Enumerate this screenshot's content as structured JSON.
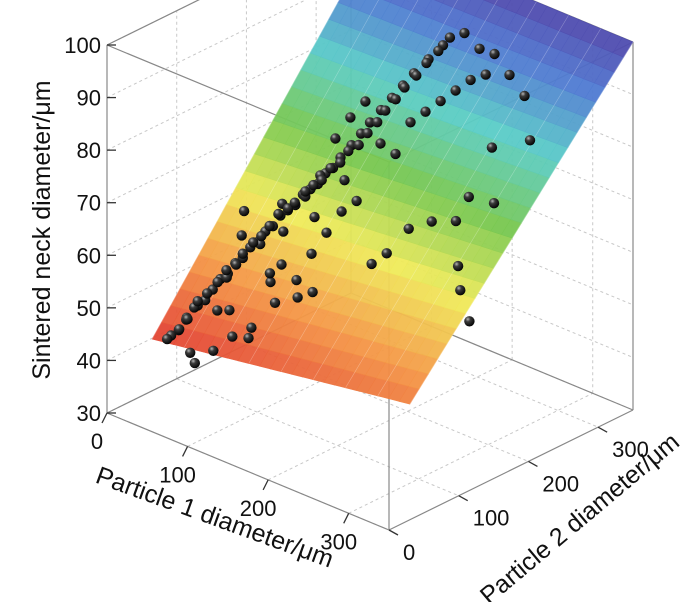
{
  "chart_data": {
    "type": "scatter",
    "subtype": "3d-scatter-with-fitted-surface",
    "title": "",
    "xlabel": "Particle 1 diameter/μm",
    "ylabel": "Particle 2 diameter/μm",
    "zlabel": "Sintered neck diameter/μm",
    "xlim": [
      0,
      350
    ],
    "ylim": [
      0,
      350
    ],
    "zlim": [
      30,
      100
    ],
    "x_ticks": [
      "0",
      "100",
      "200",
      "300"
    ],
    "y_ticks": [
      "0",
      "100",
      "200",
      "300"
    ],
    "z_ticks": [
      "30",
      "40",
      "50",
      "60",
      "70",
      "80",
      "90",
      "100"
    ],
    "grid": true,
    "surface": {
      "description": "fitted surface, colour mapped by z",
      "corners": [
        {
          "x": 30,
          "y": 30,
          "z": 44
        },
        {
          "x": 30,
          "y": 350,
          "z": 100
        },
        {
          "x": 350,
          "y": 30,
          "z": 52
        },
        {
          "x": 350,
          "y": 350,
          "z": 100
        }
      ]
    },
    "series": [
      {
        "marker": "black sphere",
        "points": [
          [
            40,
            40,
            44
          ],
          [
            45,
            40,
            45
          ],
          [
            50,
            45,
            46
          ],
          [
            42,
            55,
            45
          ],
          [
            55,
            50,
            48
          ],
          [
            48,
            60,
            47
          ],
          [
            60,
            45,
            49
          ],
          [
            58,
            58,
            50
          ],
          [
            65,
            55,
            51
          ],
          [
            52,
            70,
            50
          ],
          [
            70,
            60,
            52
          ],
          [
            62,
            72,
            52
          ],
          [
            75,
            65,
            54
          ],
          [
            68,
            80,
            54
          ],
          [
            80,
            70,
            56
          ],
          [
            72,
            88,
            56
          ],
          [
            85,
            75,
            57
          ],
          [
            78,
            95,
            57
          ],
          [
            90,
            80,
            59
          ],
          [
            82,
            100,
            59
          ],
          [
            95,
            85,
            60
          ],
          [
            88,
            108,
            61
          ],
          [
            100,
            90,
            62
          ],
          [
            92,
            115,
            62
          ],
          [
            105,
            95,
            63
          ],
          [
            98,
            120,
            64
          ],
          [
            110,
            100,
            65
          ],
          [
            102,
            128,
            66
          ],
          [
            115,
            105,
            66
          ],
          [
            108,
            135,
            67
          ],
          [
            120,
            110,
            68
          ],
          [
            112,
            140,
            68
          ],
          [
            125,
            115,
            69
          ],
          [
            118,
            148,
            70
          ],
          [
            130,
            120,
            70
          ],
          [
            122,
            155,
            71
          ],
          [
            135,
            125,
            72
          ],
          [
            128,
            160,
            72
          ],
          [
            140,
            130,
            73
          ],
          [
            132,
            168,
            74
          ],
          [
            145,
            135,
            74
          ],
          [
            138,
            175,
            75
          ],
          [
            150,
            140,
            76
          ],
          [
            142,
            182,
            77
          ],
          [
            155,
            145,
            77
          ],
          [
            148,
            190,
            78
          ],
          [
            160,
            150,
            79
          ],
          [
            152,
            198,
            80
          ],
          [
            165,
            160,
            81
          ],
          [
            158,
            205,
            82
          ],
          [
            170,
            168,
            83
          ],
          [
            162,
            212,
            84
          ],
          [
            175,
            175,
            85
          ],
          [
            168,
            220,
            86
          ],
          [
            180,
            185,
            87
          ],
          [
            172,
            228,
            88
          ],
          [
            185,
            195,
            89
          ],
          [
            178,
            238,
            90
          ],
          [
            190,
            205,
            91
          ],
          [
            182,
            248,
            92
          ],
          [
            195,
            215,
            93
          ],
          [
            188,
            258,
            94
          ],
          [
            200,
            230,
            95
          ],
          [
            192,
            270,
            96
          ],
          [
            205,
            245,
            97
          ],
          [
            60,
            50,
            42
          ],
          [
            70,
            45,
            41
          ],
          [
            80,
            60,
            43
          ],
          [
            95,
            70,
            46
          ],
          [
            110,
            80,
            48
          ],
          [
            100,
            60,
            52
          ],
          [
            85,
            95,
            63
          ],
          [
            75,
            110,
            66
          ],
          [
            120,
            95,
            58
          ],
          [
            130,
            100,
            60
          ],
          [
            140,
            110,
            57
          ],
          [
            150,
            120,
            62
          ],
          [
            160,
            130,
            66
          ],
          [
            170,
            140,
            70
          ],
          [
            180,
            150,
            72
          ],
          [
            145,
            160,
            81
          ],
          [
            155,
            170,
            85
          ],
          [
            165,
            180,
            88
          ],
          [
            175,
            190,
            80
          ],
          [
            185,
            200,
            78
          ],
          [
            195,
            210,
            84
          ],
          [
            205,
            220,
            86
          ],
          [
            215,
            230,
            88
          ],
          [
            225,
            240,
            90
          ],
          [
            235,
            250,
            92
          ],
          [
            245,
            260,
            93
          ],
          [
            210,
            270,
            98
          ],
          [
            220,
            280,
            95
          ],
          [
            230,
            290,
            94
          ],
          [
            240,
            300,
            90
          ],
          [
            250,
            310,
            86
          ],
          [
            260,
            200,
            70
          ],
          [
            280,
            180,
            64
          ],
          [
            300,
            160,
            62
          ],
          [
            320,
            150,
            58
          ],
          [
            290,
            220,
            74
          ],
          [
            270,
            240,
            82
          ],
          [
            250,
            230,
            72
          ],
          [
            230,
            200,
            68
          ],
          [
            210,
            190,
            66
          ],
          [
            200,
            170,
            62
          ],
          [
            190,
            160,
            60
          ],
          [
            300,
            260,
            84
          ],
          [
            150,
            100,
            55
          ],
          [
            160,
            110,
            56
          ],
          [
            135,
            85,
            54
          ],
          [
            125,
            90,
            57
          ],
          [
            115,
            120,
            64
          ],
          [
            105,
            130,
            68
          ],
          [
            125,
            140,
            70
          ],
          [
            135,
            150,
            74
          ],
          [
            145,
            130,
            68
          ],
          [
            165,
            150,
            75
          ],
          [
            115,
            70,
            47
          ],
          [
            95,
            110,
            61
          ],
          [
            75,
            85,
            55
          ],
          [
            85,
            60,
            51
          ]
        ]
      }
    ]
  }
}
